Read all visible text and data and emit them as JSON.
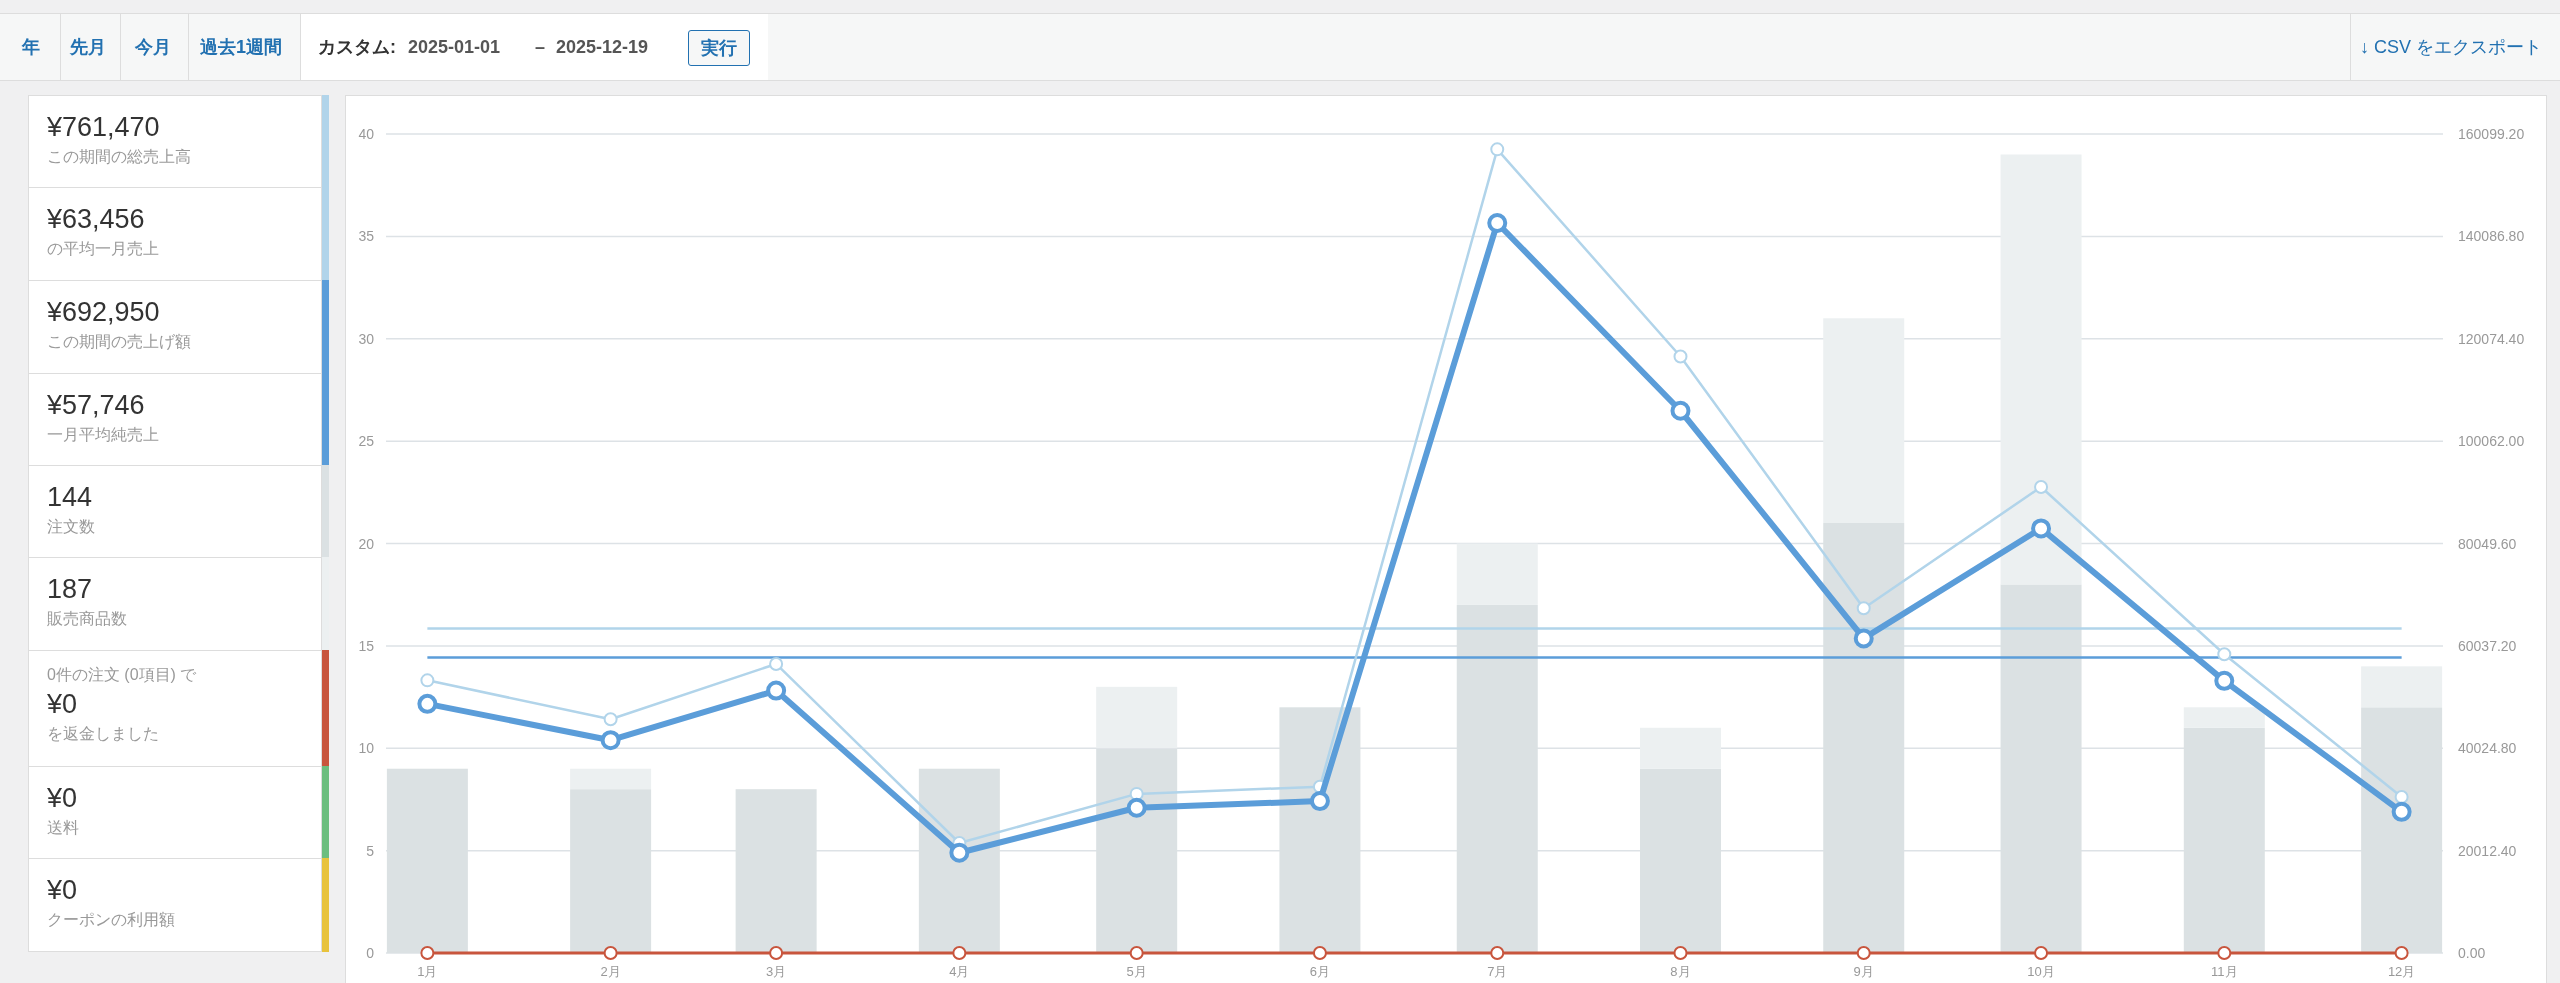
{
  "chart_data": [
    {
      "type": "other",
      "annotations": [
        "年",
        "先月",
        "今月",
        "過去1週間",
        "カスタム:",
        "2025-01-01",
        "–",
        "2025-12-19",
        "実行",
        "↓ CSV をエクスポート"
      ]
    },
    {
      "type": "other",
      "annotations": [
        "¥761,470",
        "この期間の総売上高",
        "¥63,456",
        "の平均一月売上",
        "¥692,950",
        "この期間の売上げ額",
        "¥57,746",
        "一月平均純売上",
        "144",
        "注文数",
        "187",
        "販売商品数",
        "0件の注文 (0項目) で",
        "¥0",
        "を返金しました",
        "¥0",
        "送料",
        "¥0",
        "クーポンの利用額"
      ]
    },
    {
      "type": "bar",
      "stacked": true,
      "grid": "y",
      "marker": "circle",
      "x": [
        "2025-01",
        "2025-02",
        "2025-03",
        "2025-04",
        "2025-05",
        "2025-06",
        "2025-07",
        "2025-08",
        "2025-09",
        "2025-10",
        "2025-11",
        "2025-12"
      ],
      "xlim": [
        "2024-12-25",
        "2025-12-08"
      ],
      "xticks": [
        {
          "value": "2025-01",
          "label": "1月"
        },
        {
          "value": "2025-02",
          "label": "2月"
        },
        {
          "value": "2025-03",
          "label": "3月"
        },
        {
          "value": "2025-04",
          "label": "4月"
        },
        {
          "value": "2025-05",
          "label": "5月"
        },
        {
          "value": "2025-06",
          "label": "6月"
        },
        {
          "value": "2025-07",
          "label": "7月"
        },
        {
          "value": "2025-08",
          "label": "8月"
        },
        {
          "value": "2025-09",
          "label": "9月"
        },
        {
          "value": "2025-10",
          "label": "10月"
        },
        {
          "value": "2025-11",
          "label": "11月"
        },
        {
          "value": "2025-12",
          "label": "12月"
        }
      ],
      "ylim": [
        0,
        40
      ],
      "yticks": [
        0,
        5,
        10,
        15,
        20,
        25,
        30,
        35,
        40
      ],
      "y2lim": [
        0,
        160099.2
      ],
      "y2ticks": [
        {
          "value": 0,
          "label": "0.00"
        },
        {
          "value": 20012.4,
          "label": "20012.40"
        },
        {
          "value": 40024.8,
          "label": "40024.80"
        },
        {
          "value": 60037.2,
          "label": "60037.20"
        },
        {
          "value": 80049.6,
          "label": "80049.60"
        },
        {
          "value": 100062,
          "label": "100062.00"
        },
        {
          "value": 120074.4,
          "label": "120074.40"
        },
        {
          "value": 140086.8,
          "label": "140086.80"
        },
        {
          "value": 160099.2,
          "label": "160099.20"
        }
      ],
      "series": [
        {
          "color": "#dbe1e3",
          "values": [
            9,
            8,
            8,
            9,
            10,
            12,
            17,
            9,
            21,
            18,
            11,
            12
          ]
        },
        {
          "color": "#ecf0f1",
          "values": [
            0,
            1,
            0,
            0,
            3,
            0,
            3,
            2,
            10,
            21,
            1,
            2
          ]
        },
        {
          "type": "line",
          "axis": "y2",
          "color": "#b1d4ea",
          "values": [
            53300,
            45700,
            56500,
            21500,
            31100,
            32500,
            157100,
            116600,
            67400,
            91100,
            58400,
            30500
          ]
        },
        {
          "type": "line",
          "axis": "y2",
          "color": "#5b9dd9",
          "values": [
            48700,
            41600,
            51300,
            19600,
            28400,
            29700,
            142700,
            106000,
            61500,
            83000,
            53200,
            27600
          ]
        },
        {
          "type": "line",
          "axis": "y2",
          "color": "#c8553d",
          "values": [
            0,
            0,
            0,
            0,
            0,
            0,
            0,
            0,
            0,
            0,
            0,
            0
          ]
        }
      ],
      "ref_lines": [
        {
          "axis": "y2",
          "value": 63456,
          "color": "#b1d4ea"
        },
        {
          "axis": "y2",
          "value": 57746,
          "color": "#5b9dd9"
        }
      ]
    }
  ]
}
